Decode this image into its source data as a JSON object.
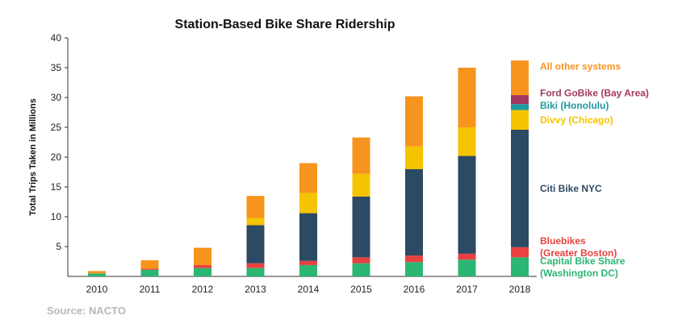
{
  "chart_data": {
    "type": "bar",
    "stacked": true,
    "title": "Station-Based Bike Share Ridership",
    "xlabel": "",
    "ylabel": "Total Trips Taken in Millions",
    "ylim": [
      0,
      40
    ],
    "yticks": [
      5,
      10,
      15,
      20,
      25,
      30,
      35,
      40
    ],
    "grid": false,
    "legend": "right (labels beside the 2018 bar)",
    "categories": [
      "2010",
      "2011",
      "2012",
      "2013",
      "2014",
      "2015",
      "2016",
      "2017",
      "2018"
    ],
    "series": [
      {
        "name": "Capital Bike Share (Washington DC)",
        "label_lines": [
          "Capital Bike Share",
          "(Washington DC)"
        ],
        "color": "#2bb673",
        "values": [
          0.5,
          1.1,
          1.4,
          1.4,
          1.9,
          2.2,
          2.4,
          2.8,
          3.2
        ]
      },
      {
        "name": "Bluebikes (Greater Boston)",
        "label_lines": [
          "Bluebikes",
          "(Greater Boston)"
        ],
        "color": "#e8413f",
        "values": [
          0,
          0.2,
          0.5,
          0.8,
          0.7,
          1.0,
          1.1,
          1.0,
          1.7
        ]
      },
      {
        "name": "Citi Bike NYC",
        "label_lines": [
          "Citi Bike NYC"
        ],
        "color": "#2c4a63",
        "values": [
          0,
          0,
          0,
          6.4,
          8.0,
          10.2,
          14.5,
          16.4,
          19.7
        ]
      },
      {
        "name": "Divvy (Chicago)",
        "label_lines": [
          "Divvy (Chicago)"
        ],
        "color": "#f5c400",
        "values": [
          0,
          0,
          0,
          1.2,
          3.4,
          3.8,
          3.8,
          4.8,
          3.3
        ]
      },
      {
        "name": "Biki (Honolulu)",
        "label_lines": [
          "Biki (Honolulu)"
        ],
        "color": "#1e9aa0",
        "values": [
          0,
          0,
          0,
          0,
          0,
          0,
          0,
          0,
          1.0
        ]
      },
      {
        "name": "Ford GoBike (Bay Area)",
        "label_lines": [
          "Ford GoBike (Bay Area)"
        ],
        "color": "#a3385f",
        "values": [
          0,
          0,
          0,
          0,
          0,
          0,
          0,
          0,
          1.5
        ]
      },
      {
        "name": "All other systems",
        "label_lines": [
          "All other systems"
        ],
        "color": "#f7941d",
        "values": [
          0.4,
          1.4,
          2.9,
          3.7,
          5.0,
          6.1,
          8.4,
          10.0,
          5.8
        ]
      }
    ]
  },
  "source": "Source: NACTO"
}
